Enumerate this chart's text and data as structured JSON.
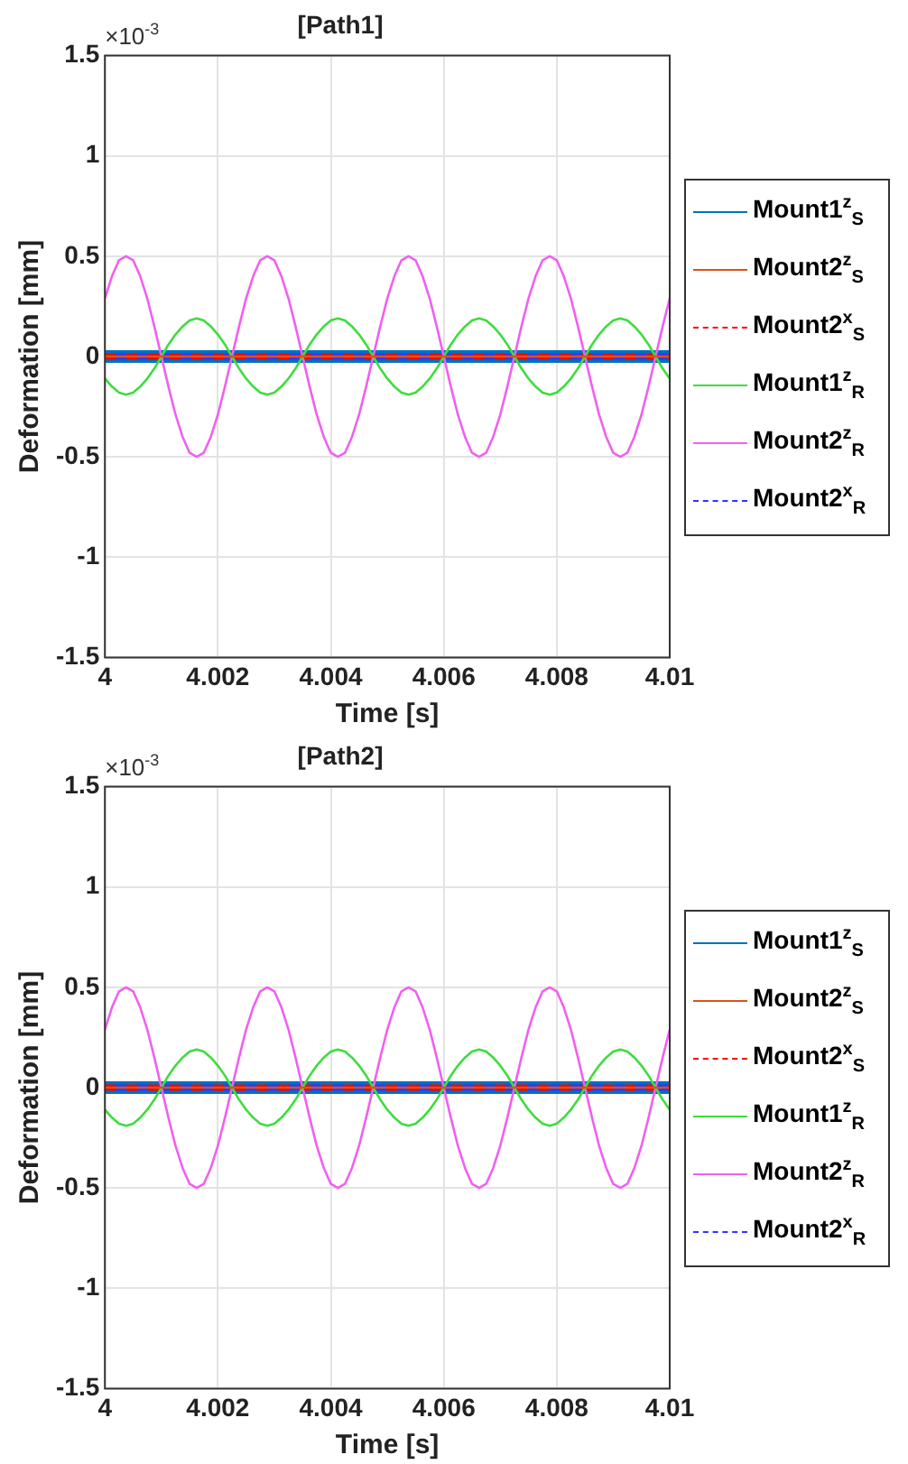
{
  "chart_data": [
    {
      "type": "line",
      "title": "[Path1]",
      "xlabel": "Time [s]",
      "ylabel": "Deformation [mm]",
      "annotations": [
        "×10$^{-3}$"
      ],
      "x": [
        4,
        4.000125,
        4.00025,
        4.000375,
        4.0005,
        4.000625,
        4.00075,
        4.000875,
        4.001,
        4.001125,
        4.00125,
        4.001375,
        4.0015,
        4.001625,
        4.00175,
        4.001875,
        4.002,
        4.002125,
        4.00225,
        4.002375,
        4.0025,
        4.002625,
        4.00275,
        4.002875,
        4.003,
        4.003125,
        4.00325,
        4.003375,
        4.0035,
        4.003625,
        4.00375,
        4.003875,
        4.004,
        4.004125,
        4.00425,
        4.004375,
        4.0045,
        4.004625,
        4.00475,
        4.004875,
        4.005,
        4.005125,
        4.00525,
        4.005375,
        4.0055,
        4.005625,
        4.00575,
        4.005875,
        4.006,
        4.006125,
        4.00625,
        4.006375,
        4.0065,
        4.006625,
        4.00675,
        4.006875,
        4.007,
        4.007125,
        4.00725,
        4.007375,
        4.0075,
        4.007625,
        4.00775,
        4.007875,
        4.008,
        4.008125,
        4.00825,
        4.008375,
        4.0085,
        4.008625,
        4.00875,
        4.008875,
        4.009,
        4.009125,
        4.00925,
        4.009375,
        4.0095,
        4.009625,
        4.00975,
        4.009875,
        4.01
      ],
      "series": [
        {
          "name": "Mount1$^{z}$$_{S}$",
          "color": "#0072bd",
          "values": [
            0,
            0,
            0,
            0,
            0,
            0,
            0,
            0,
            0,
            0,
            0,
            0,
            0,
            0,
            0,
            0,
            0,
            0,
            0,
            0,
            0,
            0,
            0,
            0,
            0,
            0,
            0,
            0,
            0,
            0,
            0,
            0,
            0,
            0,
            0,
            0,
            0,
            0,
            0,
            0,
            0,
            0,
            0,
            0,
            0,
            0,
            0,
            0,
            0,
            0,
            0,
            0,
            0,
            0,
            0,
            0,
            0,
            0,
            0,
            0,
            0,
            0,
            0,
            0,
            0,
            0,
            0,
            0,
            0,
            0,
            0,
            0,
            0,
            0,
            0,
            0,
            0,
            0,
            0,
            0,
            0
          ]
        },
        {
          "name": "Mount2$^{z}$$_{S}$",
          "color": "#d95319",
          "values": [
            0,
            0,
            0,
            0,
            0,
            0,
            0,
            0,
            0,
            0,
            0,
            0,
            0,
            0,
            0,
            0,
            0,
            0,
            0,
            0,
            0,
            0,
            0,
            0,
            0,
            0,
            0,
            0,
            0,
            0,
            0,
            0,
            0,
            0,
            0,
            0,
            0,
            0,
            0,
            0,
            0,
            0,
            0,
            0,
            0,
            0,
            0,
            0,
            0,
            0,
            0,
            0,
            0,
            0,
            0,
            0,
            0,
            0,
            0,
            0,
            0,
            0,
            0,
            0,
            0,
            0,
            0,
            0,
            0,
            0,
            0,
            0,
            0,
            0,
            0,
            0,
            0,
            0,
            0,
            0,
            0
          ]
        },
        {
          "name": "Mount2$^{x}$$_{S}$",
          "color": "#ff0000",
          "line_style": "dashed",
          "values": [
            0,
            0,
            0,
            0,
            0,
            0,
            0,
            0,
            0,
            0,
            0,
            0,
            0,
            0,
            0,
            0,
            0,
            0,
            0,
            0,
            0,
            0,
            0,
            0,
            0,
            0,
            0,
            0,
            0,
            0,
            0,
            0,
            0,
            0,
            0,
            0,
            0,
            0,
            0,
            0,
            0,
            0,
            0,
            0,
            0,
            0,
            0,
            0,
            0,
            0,
            0,
            0,
            0,
            0,
            0,
            0,
            0,
            0,
            0,
            0,
            0,
            0,
            0,
            0,
            0,
            0,
            0,
            0,
            0,
            0,
            0,
            0,
            0,
            0,
            0,
            0,
            0,
            0,
            0,
            0,
            0
          ]
        },
        {
          "name": "Mount1$^{z}$$_{R}$",
          "color": "#3fdc3f",
          "values": [
            -0.11,
            -0.15,
            -0.18,
            -0.19,
            -0.18,
            -0.15,
            -0.11,
            -0.06,
            0,
            0.06,
            0.11,
            0.15,
            0.18,
            0.19,
            0.18,
            0.15,
            0.11,
            0.06,
            0,
            -0.06,
            -0.11,
            -0.15,
            -0.18,
            -0.19,
            -0.18,
            -0.15,
            -0.11,
            -0.06,
            0,
            0.06,
            0.11,
            0.15,
            0.18,
            0.19,
            0.18,
            0.15,
            0.11,
            0.06,
            0,
            -0.06,
            -0.11,
            -0.15,
            -0.18,
            -0.19,
            -0.18,
            -0.15,
            -0.11,
            -0.06,
            0,
            0.06,
            0.11,
            0.15,
            0.18,
            0.19,
            0.18,
            0.15,
            0.11,
            0.06,
            0,
            -0.06,
            -0.11,
            -0.15,
            -0.18,
            -0.19,
            -0.18,
            -0.15,
            -0.11,
            -0.06,
            0,
            0.06,
            0.11,
            0.15,
            0.18,
            0.19,
            0.18,
            0.15,
            0.11,
            0.06,
            0,
            -0.06,
            -0.11
          ]
        },
        {
          "name": "Mount2$^{z}$$_{R}$",
          "color": "#f060f0",
          "values": [
            0.29,
            0.4,
            0.48,
            0.5,
            0.48,
            0.4,
            0.29,
            0.15,
            0,
            -0.15,
            -0.29,
            -0.4,
            -0.48,
            -0.5,
            -0.48,
            -0.4,
            -0.29,
            -0.15,
            0,
            0.15,
            0.29,
            0.4,
            0.48,
            0.5,
            0.48,
            0.4,
            0.29,
            0.15,
            0,
            -0.15,
            -0.29,
            -0.4,
            -0.48,
            -0.5,
            -0.48,
            -0.4,
            -0.29,
            -0.15,
            0,
            0.15,
            0.29,
            0.4,
            0.48,
            0.5,
            0.48,
            0.4,
            0.29,
            0.15,
            0,
            -0.15,
            -0.29,
            -0.4,
            -0.48,
            -0.5,
            -0.48,
            -0.4,
            -0.29,
            -0.15,
            0,
            0.15,
            0.29,
            0.4,
            0.48,
            0.5,
            0.48,
            0.4,
            0.29,
            0.15,
            0,
            -0.15,
            -0.29,
            -0.4,
            -0.48,
            -0.5,
            -0.48,
            -0.4,
            -0.29,
            -0.15,
            0,
            0.15,
            0.29
          ]
        },
        {
          "name": "Mount2$^{x}$$_{R}$",
          "color": "#3333ff",
          "line_style": "dashed",
          "values": [
            0,
            0,
            0,
            0,
            0,
            0,
            0,
            0,
            0,
            0,
            0,
            0,
            0,
            0,
            0,
            0,
            0,
            0,
            0,
            0,
            0,
            0,
            0,
            0,
            0,
            0,
            0,
            0,
            0,
            0,
            0,
            0,
            0,
            0,
            0,
            0,
            0,
            0,
            0,
            0,
            0,
            0,
            0,
            0,
            0,
            0,
            0,
            0,
            0,
            0,
            0,
            0,
            0,
            0,
            0,
            0,
            0,
            0,
            0,
            0,
            0,
            0,
            0,
            0,
            0,
            0,
            0,
            0,
            0,
            0,
            0,
            0,
            0,
            0,
            0,
            0,
            0,
            0,
            0,
            0,
            0
          ]
        }
      ],
      "xlim": [
        4,
        4.01
      ],
      "xticks": [
        4,
        4.002,
        4.004,
        4.006,
        4.008,
        4.01
      ],
      "ylim": [
        -1.5,
        1.5
      ],
      "yticks": [
        -1.5,
        -1,
        -0.5,
        0,
        0.5,
        1,
        1.5
      ],
      "grid": true,
      "legend": "right",
      "marker": "none"
    },
    {
      "type": "line",
      "title": "[Path2]",
      "xlabel": "Time [s]",
      "ylabel": "Deformation [mm]",
      "annotations": [
        "×10$^{-3}$"
      ],
      "x": [
        4,
        4.000125,
        4.00025,
        4.000375,
        4.0005,
        4.000625,
        4.00075,
        4.000875,
        4.001,
        4.001125,
        4.00125,
        4.001375,
        4.0015,
        4.001625,
        4.00175,
        4.001875,
        4.002,
        4.002125,
        4.00225,
        4.002375,
        4.0025,
        4.002625,
        4.00275,
        4.002875,
        4.003,
        4.003125,
        4.00325,
        4.003375,
        4.0035,
        4.003625,
        4.00375,
        4.003875,
        4.004,
        4.004125,
        4.00425,
        4.004375,
        4.0045,
        4.004625,
        4.00475,
        4.004875,
        4.005,
        4.005125,
        4.00525,
        4.005375,
        4.0055,
        4.005625,
        4.00575,
        4.005875,
        4.006,
        4.006125,
        4.00625,
        4.006375,
        4.0065,
        4.006625,
        4.00675,
        4.006875,
        4.007,
        4.007125,
        4.00725,
        4.007375,
        4.0075,
        4.007625,
        4.00775,
        4.007875,
        4.008,
        4.008125,
        4.00825,
        4.008375,
        4.0085,
        4.008625,
        4.00875,
        4.008875,
        4.009,
        4.009125,
        4.00925,
        4.009375,
        4.0095,
        4.009625,
        4.00975,
        4.009875,
        4.01
      ],
      "series": [
        {
          "name": "Mount1$^{z}$$_{S}$",
          "color": "#0072bd",
          "values": [
            0,
            0,
            0,
            0,
            0,
            0,
            0,
            0,
            0,
            0,
            0,
            0,
            0,
            0,
            0,
            0,
            0,
            0,
            0,
            0,
            0,
            0,
            0,
            0,
            0,
            0,
            0,
            0,
            0,
            0,
            0,
            0,
            0,
            0,
            0,
            0,
            0,
            0,
            0,
            0,
            0,
            0,
            0,
            0,
            0,
            0,
            0,
            0,
            0,
            0,
            0,
            0,
            0,
            0,
            0,
            0,
            0,
            0,
            0,
            0,
            0,
            0,
            0,
            0,
            0,
            0,
            0,
            0,
            0,
            0,
            0,
            0,
            0,
            0,
            0,
            0,
            0,
            0,
            0,
            0,
            0
          ]
        },
        {
          "name": "Mount2$^{z}$$_{S}$",
          "color": "#d95319",
          "values": [
            0,
            0,
            0,
            0,
            0,
            0,
            0,
            0,
            0,
            0,
            0,
            0,
            0,
            0,
            0,
            0,
            0,
            0,
            0,
            0,
            0,
            0,
            0,
            0,
            0,
            0,
            0,
            0,
            0,
            0,
            0,
            0,
            0,
            0,
            0,
            0,
            0,
            0,
            0,
            0,
            0,
            0,
            0,
            0,
            0,
            0,
            0,
            0,
            0,
            0,
            0,
            0,
            0,
            0,
            0,
            0,
            0,
            0,
            0,
            0,
            0,
            0,
            0,
            0,
            0,
            0,
            0,
            0,
            0,
            0,
            0,
            0,
            0,
            0,
            0,
            0,
            0,
            0,
            0,
            0,
            0
          ]
        },
        {
          "name": "Mount2$^{x}$$_{S}$",
          "color": "#ff0000",
          "line_style": "dashed",
          "values": [
            0,
            0,
            0,
            0,
            0,
            0,
            0,
            0,
            0,
            0,
            0,
            0,
            0,
            0,
            0,
            0,
            0,
            0,
            0,
            0,
            0,
            0,
            0,
            0,
            0,
            0,
            0,
            0,
            0,
            0,
            0,
            0,
            0,
            0,
            0,
            0,
            0,
            0,
            0,
            0,
            0,
            0,
            0,
            0,
            0,
            0,
            0,
            0,
            0,
            0,
            0,
            0,
            0,
            0,
            0,
            0,
            0,
            0,
            0,
            0,
            0,
            0,
            0,
            0,
            0,
            0,
            0,
            0,
            0,
            0,
            0,
            0,
            0,
            0,
            0,
            0,
            0,
            0,
            0,
            0,
            0
          ]
        },
        {
          "name": "Mount1$^{z}$$_{R}$",
          "color": "#3fdc3f",
          "values": [
            -0.11,
            -0.15,
            -0.18,
            -0.19,
            -0.18,
            -0.15,
            -0.11,
            -0.06,
            0,
            0.06,
            0.11,
            0.15,
            0.18,
            0.19,
            0.18,
            0.15,
            0.11,
            0.06,
            0,
            -0.06,
            -0.11,
            -0.15,
            -0.18,
            -0.19,
            -0.18,
            -0.15,
            -0.11,
            -0.06,
            0,
            0.06,
            0.11,
            0.15,
            0.18,
            0.19,
            0.18,
            0.15,
            0.11,
            0.06,
            0,
            -0.06,
            -0.11,
            -0.15,
            -0.18,
            -0.19,
            -0.18,
            -0.15,
            -0.11,
            -0.06,
            0,
            0.06,
            0.11,
            0.15,
            0.18,
            0.19,
            0.18,
            0.15,
            0.11,
            0.06,
            0,
            -0.06,
            -0.11,
            -0.15,
            -0.18,
            -0.19,
            -0.18,
            -0.15,
            -0.11,
            -0.06,
            0,
            0.06,
            0.11,
            0.15,
            0.18,
            0.19,
            0.18,
            0.15,
            0.11,
            0.06,
            0,
            -0.06,
            -0.11
          ]
        },
        {
          "name": "Mount2$^{z}$$_{R}$",
          "color": "#f060f0",
          "values": [
            0.29,
            0.4,
            0.48,
            0.5,
            0.48,
            0.4,
            0.29,
            0.15,
            0,
            -0.15,
            -0.29,
            -0.4,
            -0.48,
            -0.5,
            -0.48,
            -0.4,
            -0.29,
            -0.15,
            0,
            0.15,
            0.29,
            0.4,
            0.48,
            0.5,
            0.48,
            0.4,
            0.29,
            0.15,
            0,
            -0.15,
            -0.29,
            -0.4,
            -0.48,
            -0.5,
            -0.48,
            -0.4,
            -0.29,
            -0.15,
            0,
            0.15,
            0.29,
            0.4,
            0.48,
            0.5,
            0.48,
            0.4,
            0.29,
            0.15,
            0,
            -0.15,
            -0.29,
            -0.4,
            -0.48,
            -0.5,
            -0.48,
            -0.4,
            -0.29,
            -0.15,
            0,
            0.15,
            0.29,
            0.4,
            0.48,
            0.5,
            0.48,
            0.4,
            0.29,
            0.15,
            0,
            -0.15,
            -0.29,
            -0.4,
            -0.48,
            -0.5,
            -0.48,
            -0.4,
            -0.29,
            -0.15,
            0,
            0.15,
            0.29
          ]
        },
        {
          "name": "Mount2$^{x}$$_{R}$",
          "color": "#3333ff",
          "line_style": "dashed",
          "values": [
            0,
            0,
            0,
            0,
            0,
            0,
            0,
            0,
            0,
            0,
            0,
            0,
            0,
            0,
            0,
            0,
            0,
            0,
            0,
            0,
            0,
            0,
            0,
            0,
            0,
            0,
            0,
            0,
            0,
            0,
            0,
            0,
            0,
            0,
            0,
            0,
            0,
            0,
            0,
            0,
            0,
            0,
            0,
            0,
            0,
            0,
            0,
            0,
            0,
            0,
            0,
            0,
            0,
            0,
            0,
            0,
            0,
            0,
            0,
            0,
            0,
            0,
            0,
            0,
            0,
            0,
            0,
            0,
            0,
            0,
            0,
            0,
            0,
            0,
            0,
            0,
            0,
            0,
            0,
            0,
            0
          ]
        }
      ],
      "xlim": [
        4,
        4.01
      ],
      "xticks": [
        4,
        4.002,
        4.004,
        4.006,
        4.008,
        4.01
      ],
      "ylim": [
        -1.5,
        1.5
      ],
      "yticks": [
        -1.5,
        -1,
        -0.5,
        0,
        0.5,
        1,
        1.5
      ],
      "grid": true,
      "legend": "right",
      "marker": "none"
    }
  ]
}
